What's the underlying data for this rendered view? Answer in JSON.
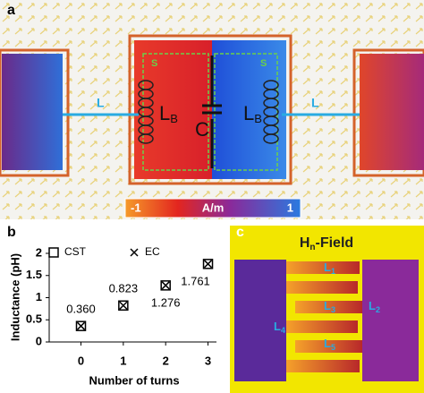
{
  "panel_a": {
    "label": "a",
    "s_left": "S",
    "s_right": "S",
    "l_left": "L",
    "l_right": "L",
    "lb_left": {
      "main": "L",
      "sub": "B"
    },
    "lb_right": {
      "main": "L",
      "sub": "B"
    },
    "cap": "C",
    "colorbar": {
      "min": "-1",
      "unit": "A/m",
      "max": "1"
    }
  },
  "chart_data": {
    "type": "scatter",
    "label": "b",
    "x_label": "Number of turns",
    "y_label": "Inductance (pH)",
    "x": [
      0,
      1,
      2,
      3
    ],
    "series": [
      {
        "name": "CST",
        "marker": "square",
        "color": "#000000",
        "values": [
          0.36,
          0.823,
          1.276,
          1.761
        ],
        "value_labels": [
          "0.360",
          "0.823",
          "1.276",
          "1.761"
        ]
      },
      {
        "name": "EC",
        "marker": "x",
        "color": "#000000",
        "values": [
          0.36,
          0.823,
          1.276,
          1.761
        ]
      }
    ],
    "xlim": [
      -0.75,
      3.2
    ],
    "xticks": [
      0,
      1,
      2,
      3
    ],
    "ylim": [
      0,
      2
    ],
    "yticks": [
      0,
      0.5,
      1,
      1.5,
      2
    ],
    "grid": false
  },
  "panel_c": {
    "label": "c",
    "title": {
      "main": "H",
      "sub": "n",
      "rest": "-Field"
    },
    "inductors": [
      {
        "main": "L",
        "sub": "1"
      },
      {
        "main": "L",
        "sub": "2"
      },
      {
        "main": "L",
        "sub": "3"
      },
      {
        "main": "L",
        "sub": "4"
      },
      {
        "main": "L",
        "sub": "5"
      }
    ]
  }
}
